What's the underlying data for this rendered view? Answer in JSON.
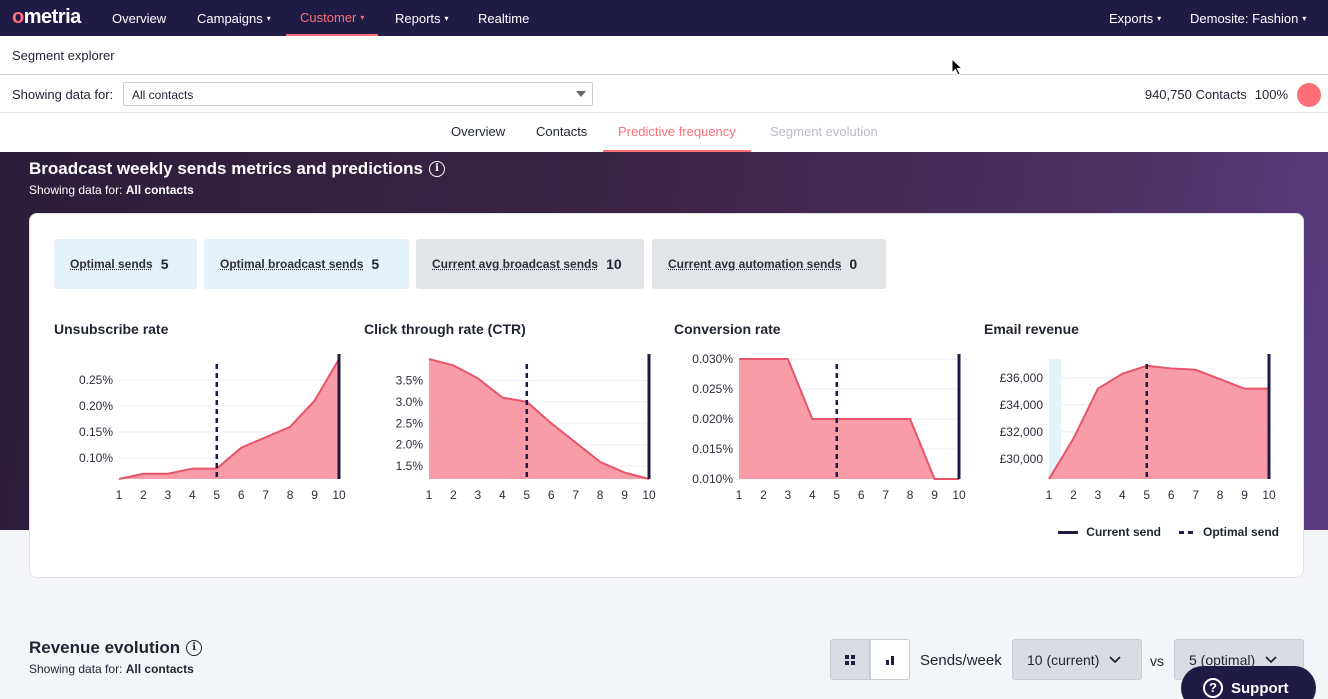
{
  "nav": {
    "logo": "ometria",
    "items": [
      {
        "label": "Overview",
        "caret": false
      },
      {
        "label": "Campaigns",
        "caret": true
      },
      {
        "label": "Customer",
        "caret": true,
        "active": true
      },
      {
        "label": "Reports",
        "caret": true
      },
      {
        "label": "Realtime",
        "caret": false
      }
    ],
    "exports": "Exports",
    "site": "Demosite: Fashion"
  },
  "subheader": {
    "title": "Segment explorer"
  },
  "filter": {
    "label": "Showing data for:",
    "select_value": "All contacts",
    "contacts_count": "940,750 Contacts",
    "contacts_pct": "100%"
  },
  "tabs": [
    {
      "label": "Overview",
      "state": "normal"
    },
    {
      "label": "Contacts",
      "state": "normal"
    },
    {
      "label": "Predictive frequency",
      "state": "active"
    },
    {
      "label": "Segment evolution",
      "state": "disabled"
    }
  ],
  "broadcast": {
    "title": "Broadcast weekly sends metrics and predictions",
    "sub_prefix": "Showing data for:",
    "sub_value": "All contacts",
    "metrics": [
      {
        "label": "Optimal sends",
        "value": "5",
        "tone": "blue"
      },
      {
        "label": "Optimal broadcast sends",
        "value": "5",
        "tone": "blue"
      },
      {
        "label": "Current avg broadcast sends",
        "value": "10",
        "tone": "grey"
      },
      {
        "label": "Current avg automation sends",
        "value": "0",
        "tone": "grey"
      }
    ],
    "legend": {
      "current": "Current send",
      "optimal": "Optimal send"
    }
  },
  "colors": {
    "fill": "#f7919f",
    "stroke": "#e8546a",
    "marker": "#1f1b45",
    "accent": "#ff6f78"
  },
  "chart_data": [
    {
      "type": "area",
      "title": "Unsubscribe rate",
      "x": [
        1,
        2,
        3,
        4,
        5,
        6,
        7,
        8,
        9,
        10
      ],
      "y": [
        0.06,
        0.07,
        0.07,
        0.08,
        0.08,
        0.12,
        0.14,
        0.16,
        0.21,
        0.29
      ],
      "ylim": [
        0.06,
        0.29
      ],
      "yticks": [
        0.1,
        0.15,
        0.2,
        0.25
      ],
      "ytick_labels": [
        "0.10%",
        "0.15%",
        "0.20%",
        "0.25%"
      ],
      "optimal_send": 5,
      "current_send": 10
    },
    {
      "type": "area",
      "title": "Click through rate (CTR)",
      "x": [
        1,
        2,
        3,
        4,
        5,
        6,
        7,
        8,
        9,
        10
      ],
      "y": [
        4.0,
        3.85,
        3.55,
        3.1,
        3.0,
        2.5,
        2.05,
        1.6,
        1.35,
        1.2
      ],
      "ylim": [
        1.2,
        4.0
      ],
      "yticks": [
        1.5,
        2.0,
        2.5,
        3.0,
        3.5
      ],
      "ytick_labels": [
        "1.5%",
        "2.0%",
        "2.5%",
        "3.0%",
        "3.5%"
      ],
      "optimal_send": 5,
      "current_send": 10
    },
    {
      "type": "area",
      "title": "Conversion rate",
      "x": [
        1,
        2,
        3,
        4,
        5,
        6,
        7,
        8,
        9,
        10
      ],
      "y": [
        0.03,
        0.03,
        0.03,
        0.02,
        0.02,
        0.02,
        0.02,
        0.02,
        0.01,
        0.01
      ],
      "ylim": [
        0.01,
        0.03
      ],
      "yticks": [
        0.01,
        0.015,
        0.02,
        0.025,
        0.03
      ],
      "ytick_labels": [
        "0.010%",
        "0.015%",
        "0.020%",
        "0.025%",
        "0.030%"
      ],
      "optimal_send": 5,
      "current_send": 10
    },
    {
      "type": "area",
      "title": "Email revenue",
      "x": [
        1,
        2,
        3,
        4,
        5,
        6,
        7,
        8,
        9,
        10
      ],
      "y": [
        28500,
        31500,
        35200,
        36300,
        36900,
        36700,
        36600,
        35900,
        35200,
        35200
      ],
      "ylim": [
        28500,
        37400
      ],
      "yticks": [
        30000,
        32000,
        34000,
        36000
      ],
      "ytick_labels": [
        "£30,000",
        "£32,000",
        "£34,000",
        "£36,000"
      ],
      "optimal_send": 5,
      "current_send": 10,
      "highlight_x": 1.5
    }
  ],
  "revenue": {
    "title": "Revenue evolution",
    "sub_prefix": "Showing data for:",
    "sub_value": "All contacts",
    "sends_label": "Sends/week",
    "current_option": "10 (current)",
    "vs": "vs",
    "optimal_option": "5 (optimal)"
  },
  "support": {
    "label": "Support"
  }
}
